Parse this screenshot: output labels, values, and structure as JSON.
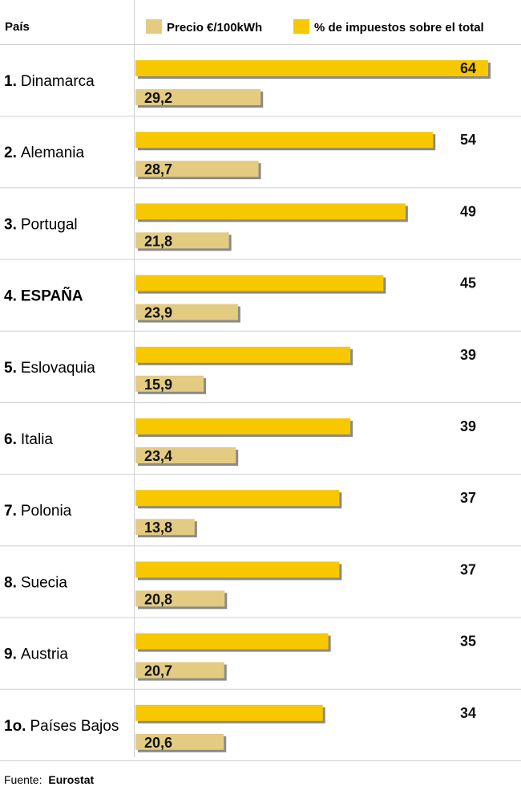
{
  "header": {
    "country_label": "País"
  },
  "source": {
    "label": "Fuente:",
    "name": "Eurostat"
  },
  "colors": {
    "tax": "#F7C800",
    "price": "#E3CC82",
    "shadow": "#8a8a8a",
    "grid": "#cfcfcf"
  },
  "chart_data": {
    "type": "bar",
    "orientation": "horizontal",
    "legend": "top",
    "categories": [
      {
        "rank": "1.",
        "name": "Dinamarca",
        "bold": false
      },
      {
        "rank": "2.",
        "name": "Alemania",
        "bold": false
      },
      {
        "rank": "3.",
        "name": "Portugal",
        "bold": false
      },
      {
        "rank": "4.",
        "name": "ESPAÑA",
        "bold": true
      },
      {
        "rank": "5.",
        "name": "Eslovaquia",
        "bold": false
      },
      {
        "rank": "6.",
        "name": "Italia",
        "bold": false
      },
      {
        "rank": "7.",
        "name": "Polonia",
        "bold": false
      },
      {
        "rank": "8.",
        "name": "Suecia",
        "bold": false
      },
      {
        "rank": "9.",
        "name": "Austria",
        "bold": false
      },
      {
        "rank": "1o.",
        "name": "Países Bajos",
        "bold": false
      }
    ],
    "series": [
      {
        "name": "% de impuestos sobre el total",
        "key": "tax",
        "values": [
          64,
          54,
          49,
          45,
          39,
          39,
          37,
          37,
          35,
          34
        ],
        "labels": [
          "64",
          "54",
          "49",
          "45",
          "39",
          "39",
          "37",
          "37",
          "35",
          "34"
        ]
      },
      {
        "name": "Precio €/100kWh",
        "key": "price",
        "values": [
          29.2,
          28.7,
          21.8,
          23.9,
          15.9,
          23.4,
          13.8,
          20.8,
          20.7,
          20.6
        ],
        "labels": [
          "29,2",
          "28,7",
          "21,8",
          "23,9",
          "15,9",
          "23,4",
          "13,8",
          "20,8",
          "20,7",
          "20,6"
        ]
      }
    ]
  }
}
